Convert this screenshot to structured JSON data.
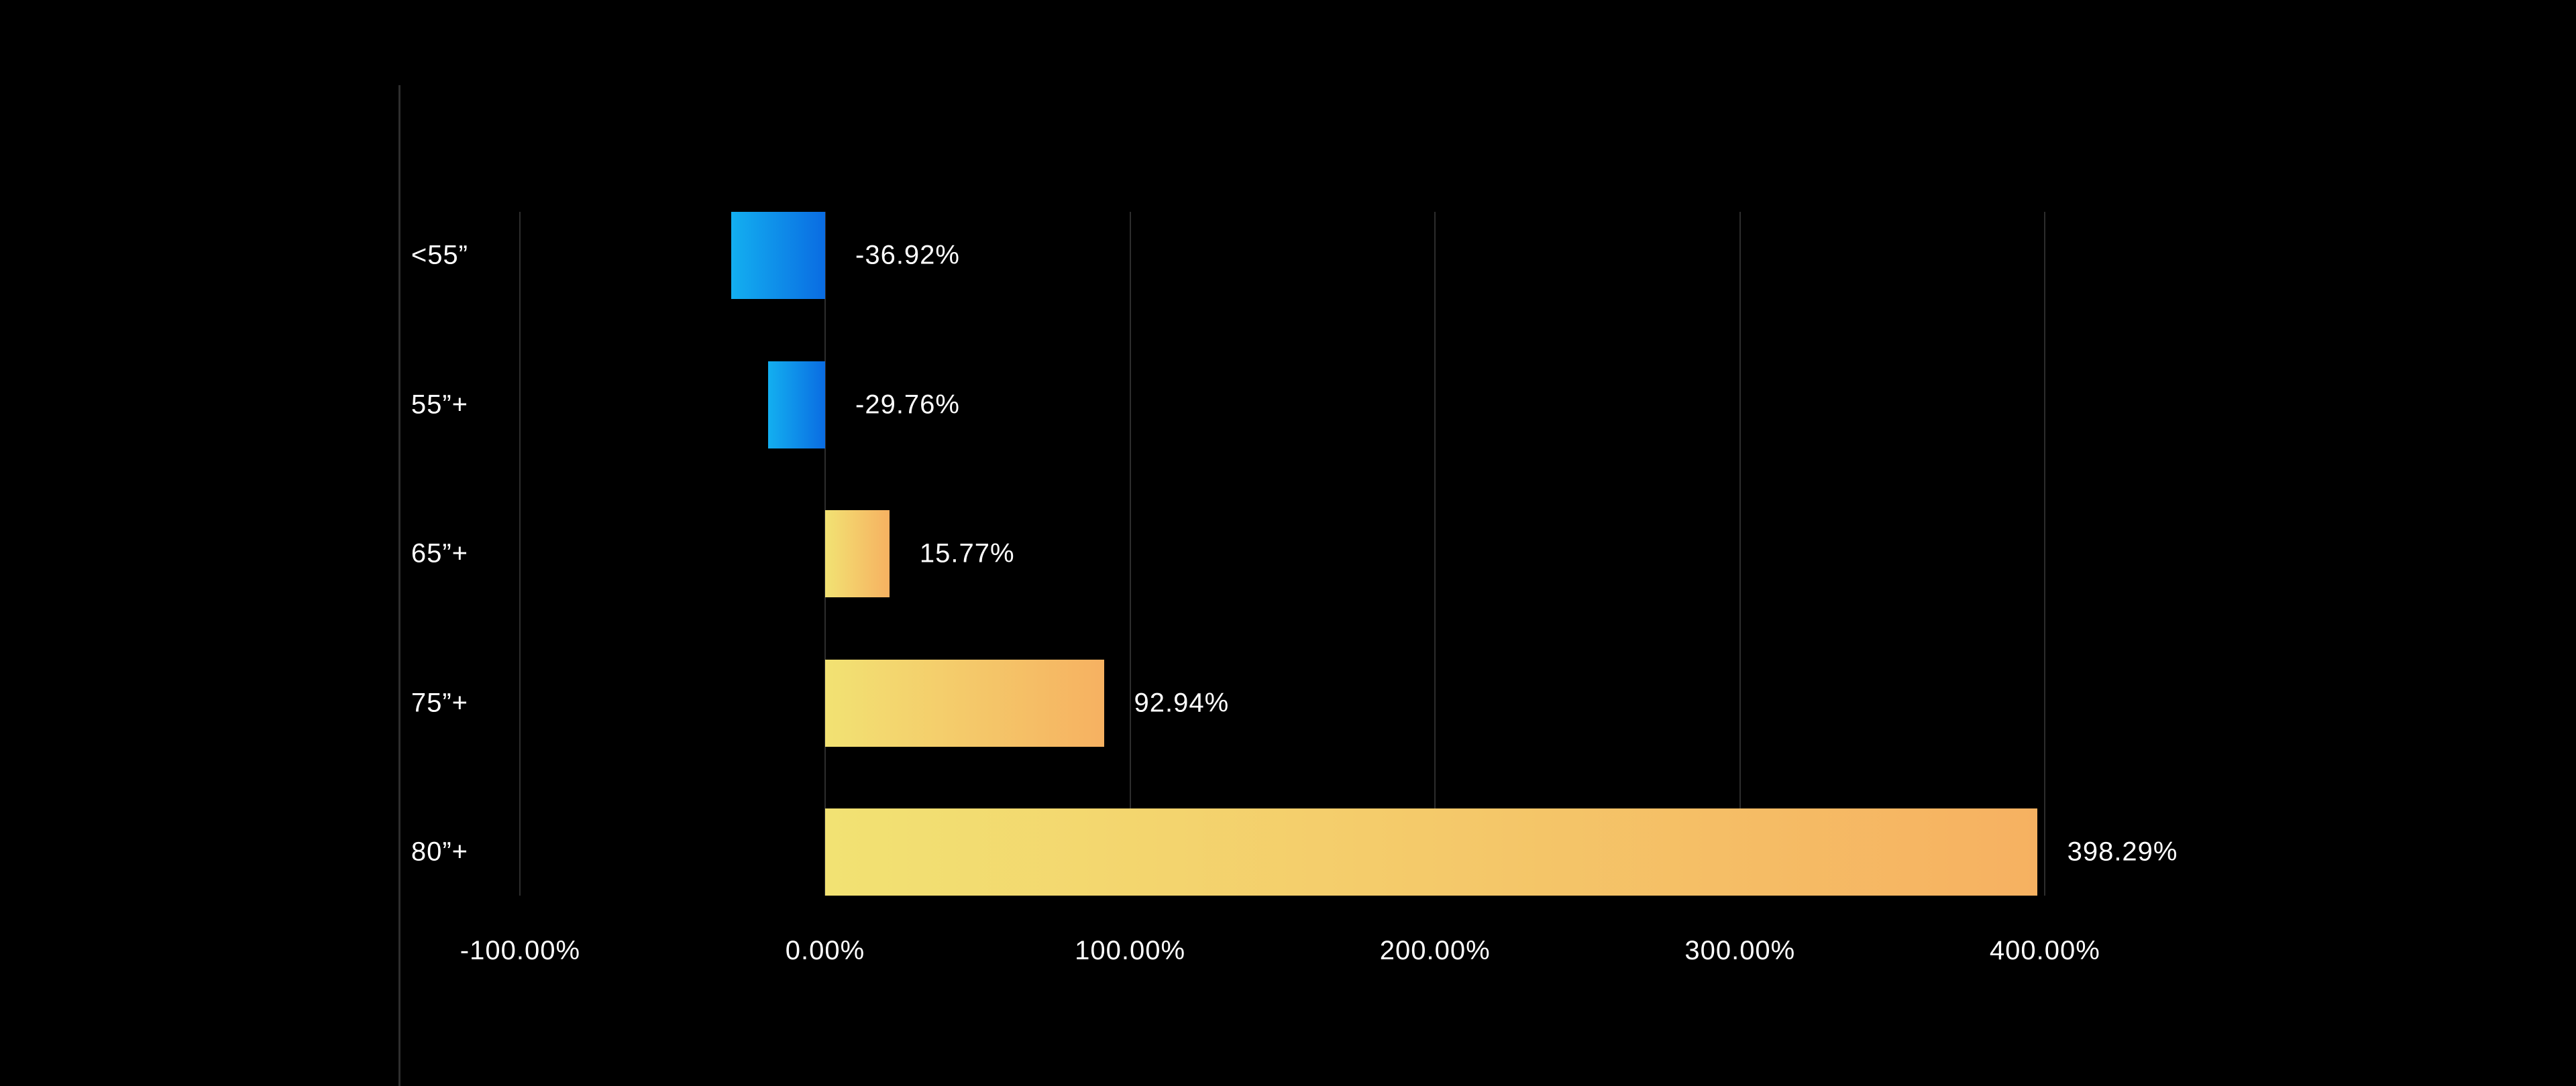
{
  "chart_data": {
    "type": "bar",
    "orientation": "horizontal",
    "title": "",
    "xlabel": "",
    "ylabel": "",
    "categories": [
      "<55”",
      "55”+",
      "65”+",
      "75”+",
      "80”+"
    ],
    "values": [
      -36.92,
      -29.76,
      15.77,
      92.94,
      398.29
    ],
    "value_labels": [
      "-36.92%",
      "-29.76%",
      "15.77%",
      "92.94%",
      "398.29%"
    ],
    "x_ticks": [
      {
        "value": -100,
        "label": "-100.00%"
      },
      {
        "value": 0,
        "label": "0.00%"
      },
      {
        "value": 100,
        "label": "100.00%"
      },
      {
        "value": 200,
        "label": "200.00%"
      },
      {
        "value": 300,
        "label": "300.00%"
      },
      {
        "value": 400,
        "label": "400.00%"
      }
    ],
    "xlim": [
      -100,
      400
    ],
    "grid": "vertical-gridlines",
    "legend": "none",
    "bar_visual_extents_pct": [
      -30.8,
      -18.7,
      21.1,
      91.4,
      397.4
    ],
    "colors": {
      "background": "#000000",
      "text": "#ffffff",
      "gridline": "#2d2d2d",
      "divider_line": "#2e2e2e",
      "negative_bar_gradient": [
        "#13aff0",
        "#0a6ce2"
      ],
      "positive_bar_gradient": [
        "#f2e273",
        "#f6b161"
      ]
    }
  }
}
